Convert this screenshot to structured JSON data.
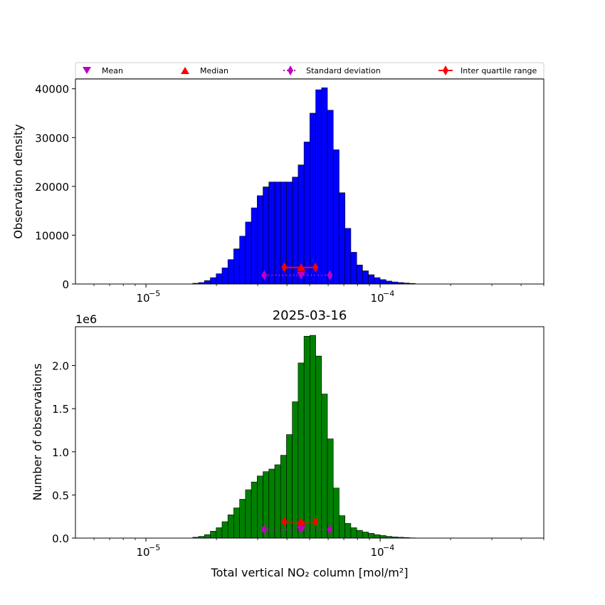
{
  "legend": {
    "mean": "Mean",
    "median": "Median",
    "std": "Standard deviation",
    "iqr": "Inter quartile range"
  },
  "colors": {
    "top_bars": "#0000ff",
    "bottom_bars": "#008000",
    "mean": "#bf00bf",
    "median": "#ff0000",
    "std": "#bf00bf",
    "iqr": "#ff0000"
  },
  "chart_data": [
    {
      "type": "bar",
      "title": "",
      "xlabel": "",
      "ylabel": "Observation density",
      "xscale": "log",
      "xlim": [
        5e-06,
        0.0005
      ],
      "ylim": [
        0,
        42000
      ],
      "yticks": [
        0,
        10000,
        20000,
        30000,
        40000
      ],
      "ytick_labels": [
        "0",
        "10000",
        "20000",
        "30000",
        "40000"
      ],
      "xticks": [
        1e-05,
        0.0001
      ],
      "xtick_labels": [
        "10",
        "10"
      ],
      "xtick_exponents": [
        "−5",
        "−4"
      ],
      "bin_edges_log10": [
        -4.8,
        -4.775,
        -4.75,
        -4.725,
        -4.7,
        -4.675,
        -4.65,
        -4.625,
        -4.6,
        -4.575,
        -4.55,
        -4.525,
        -4.5,
        -4.475,
        -4.45,
        -4.425,
        -4.4,
        -4.375,
        -4.35,
        -4.325,
        -4.3,
        -4.275,
        -4.25,
        -4.225,
        -4.2,
        -4.175,
        -4.15,
        -4.125,
        -4.1,
        -4.075,
        -4.05,
        -4.025,
        -4.0,
        -3.975,
        -3.95,
        -3.925,
        -3.9,
        -3.875,
        -3.85
      ],
      "values": [
        150,
        300,
        700,
        1300,
        2100,
        3300,
        5000,
        7200,
        9800,
        12700,
        15600,
        18100,
        19900,
        20900,
        20900,
        20900,
        20900,
        21900,
        24400,
        29100,
        35000,
        39800,
        40200,
        35600,
        27500,
        18700,
        11400,
        6500,
        3900,
        2700,
        1900,
        1300,
        900,
        600,
        420,
        300,
        200,
        120
      ],
      "stats": {
        "mean": 4.6e-05,
        "median": 4.6e-05,
        "std_range": [
          3.2e-05,
          6.1e-05
        ],
        "iqr_range": [
          3.9e-05,
          5.3e-05
        ],
        "marker_y_median": 3400,
        "marker_y_mean": 1800
      },
      "grid": false,
      "legend_position": "top, above plot"
    },
    {
      "type": "bar",
      "title": "2025-03-16",
      "xlabel": "Total vertical NO₂ column [mol/m²]",
      "ylabel": "Number of observations",
      "yscale_offset_label": "1e6",
      "xscale": "log",
      "xlim": [
        5e-06,
        0.0005
      ],
      "ylim": [
        0,
        2450000
      ],
      "yticks": [
        0,
        500000,
        1000000,
        1500000,
        2000000
      ],
      "ytick_labels": [
        "0.0",
        "0.5",
        "1.0",
        "1.5",
        "2.0"
      ],
      "xticks": [
        1e-05,
        0.0001
      ],
      "xtick_labels": [
        "10",
        "10"
      ],
      "xtick_exponents": [
        "−5",
        "−4"
      ],
      "bin_edges_log10": [
        -4.8,
        -4.775,
        -4.75,
        -4.725,
        -4.7,
        -4.675,
        -4.65,
        -4.625,
        -4.6,
        -4.575,
        -4.55,
        -4.525,
        -4.5,
        -4.475,
        -4.45,
        -4.425,
        -4.4,
        -4.375,
        -4.35,
        -4.325,
        -4.3,
        -4.275,
        -4.25,
        -4.225,
        -4.2,
        -4.175,
        -4.15,
        -4.125,
        -4.1,
        -4.075,
        -4.05,
        -4.025,
        -4.0,
        -3.975,
        -3.95,
        -3.925,
        -3.9,
        -3.875,
        -3.85
      ],
      "values": [
        10000,
        20000,
        40000,
        80000,
        120000,
        190000,
        270000,
        350000,
        450000,
        560000,
        650000,
        720000,
        770000,
        800000,
        850000,
        960000,
        1200000,
        1580000,
        2030000,
        2340000,
        2350000,
        2110000,
        1670000,
        1150000,
        580000,
        260000,
        170000,
        120000,
        90000,
        70000,
        55000,
        40000,
        30000,
        20000,
        14000,
        10000,
        6000,
        3000
      ],
      "stats": {
        "mean": 4.6e-05,
        "median": 4.6e-05,
        "std_range": [
          3.2e-05,
          6.1e-05
        ],
        "iqr_range": [
          3.9e-05,
          5.3e-05
        ],
        "marker_y_median": 190000,
        "marker_y_mean": 100000
      },
      "grid": false
    }
  ]
}
